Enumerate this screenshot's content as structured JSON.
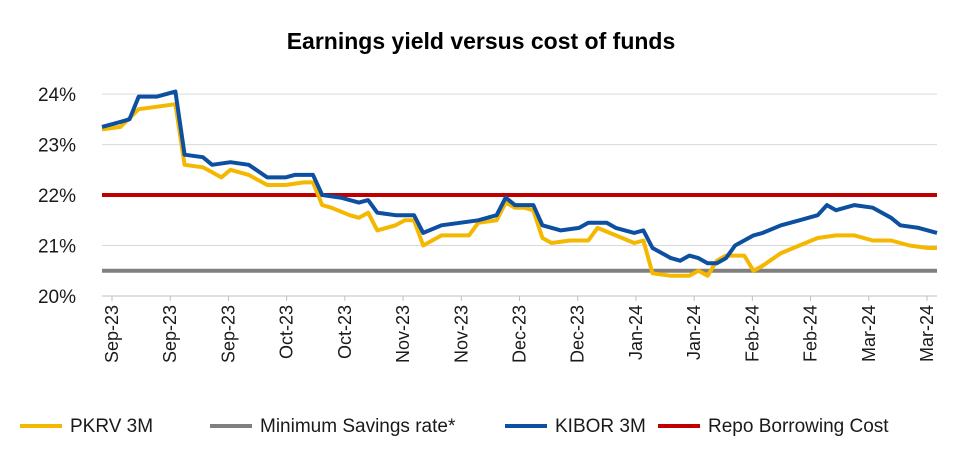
{
  "chart_data": {
    "type": "line",
    "title": "Earnings yield versus cost of funds",
    "xlabel": "",
    "ylabel": "",
    "ylim": [
      20,
      24.2
    ],
    "yticks": [
      "24%",
      "23%",
      "22%",
      "21%",
      "20%"
    ],
    "ytick_values": [
      24,
      23,
      22,
      21,
      20
    ],
    "grid": "horizontal",
    "legend_position": "bottom",
    "xticks": [
      "Sep-23",
      "Sep-23",
      "Sep-23",
      "Oct-23",
      "Oct-23",
      "Nov-23",
      "Nov-23",
      "Dec-23",
      "Dec-23",
      "Jan-24",
      "Jan-24",
      "Feb-24",
      "Feb-24",
      "Mar-24",
      "Mar-24"
    ],
    "series": [
      {
        "name": "PKRV 3M",
        "color": "#f5b800",
        "points": [
          [
            0,
            23.3
          ],
          [
            2,
            23.35
          ],
          [
            4,
            23.7
          ],
          [
            6,
            23.75
          ],
          [
            8,
            23.8
          ],
          [
            9,
            22.6
          ],
          [
            11,
            22.55
          ],
          [
            12,
            22.45
          ],
          [
            13,
            22.35
          ],
          [
            14,
            22.5
          ],
          [
            16,
            22.4
          ],
          [
            18,
            22.2
          ],
          [
            20,
            22.2
          ],
          [
            22,
            22.25
          ],
          [
            23,
            22.25
          ],
          [
            24,
            21.8
          ],
          [
            25,
            21.75
          ],
          [
            27,
            21.6
          ],
          [
            28,
            21.55
          ],
          [
            29,
            21.65
          ],
          [
            30,
            21.3
          ],
          [
            32,
            21.4
          ],
          [
            33,
            21.5
          ],
          [
            34,
            21.5
          ],
          [
            35,
            21.0
          ],
          [
            37,
            21.2
          ],
          [
            39,
            21.2
          ],
          [
            40,
            21.2
          ],
          [
            41,
            21.45
          ],
          [
            43,
            21.5
          ],
          [
            44,
            21.85
          ],
          [
            45,
            21.75
          ],
          [
            46,
            21.75
          ],
          [
            47,
            21.7
          ],
          [
            48,
            21.15
          ],
          [
            49,
            21.05
          ],
          [
            51,
            21.1
          ],
          [
            53,
            21.1
          ],
          [
            54,
            21.35
          ],
          [
            56,
            21.2
          ],
          [
            58,
            21.05
          ],
          [
            59,
            21.1
          ],
          [
            60,
            20.45
          ],
          [
            62,
            20.4
          ],
          [
            64,
            20.4
          ],
          [
            65,
            20.5
          ],
          [
            66,
            20.4
          ],
          [
            67,
            20.7
          ],
          [
            68,
            20.8
          ],
          [
            70,
            20.8
          ],
          [
            71,
            20.5
          ],
          [
            72,
            20.6
          ],
          [
            74,
            20.85
          ],
          [
            76,
            21.0
          ],
          [
            78,
            21.15
          ],
          [
            80,
            21.2
          ],
          [
            82,
            21.2
          ],
          [
            84,
            21.1
          ],
          [
            86,
            21.1
          ],
          [
            88,
            21.0
          ],
          [
            90,
            20.95
          ],
          [
            91,
            20.95
          ]
        ]
      },
      {
        "name": "Minimum Savings rate*",
        "color": "#808080",
        "points": [
          [
            0,
            20.5
          ],
          [
            91,
            20.5
          ]
        ]
      },
      {
        "name": "KIBOR 3M",
        "color": "#0d4fa0",
        "points": [
          [
            0,
            23.35
          ],
          [
            2,
            23.45
          ],
          [
            3,
            23.5
          ],
          [
            4,
            23.95
          ],
          [
            6,
            23.95
          ],
          [
            8,
            24.05
          ],
          [
            9,
            22.8
          ],
          [
            11,
            22.75
          ],
          [
            12,
            22.6
          ],
          [
            14,
            22.65
          ],
          [
            16,
            22.6
          ],
          [
            18,
            22.35
          ],
          [
            20,
            22.35
          ],
          [
            21,
            22.4
          ],
          [
            23,
            22.4
          ],
          [
            24,
            22.0
          ],
          [
            26,
            21.95
          ],
          [
            28,
            21.85
          ],
          [
            29,
            21.9
          ],
          [
            30,
            21.65
          ],
          [
            32,
            21.6
          ],
          [
            34,
            21.6
          ],
          [
            35,
            21.25
          ],
          [
            37,
            21.4
          ],
          [
            39,
            21.45
          ],
          [
            41,
            21.5
          ],
          [
            43,
            21.6
          ],
          [
            44,
            21.95
          ],
          [
            45,
            21.8
          ],
          [
            47,
            21.8
          ],
          [
            48,
            21.4
          ],
          [
            50,
            21.3
          ],
          [
            52,
            21.35
          ],
          [
            53,
            21.45
          ],
          [
            55,
            21.45
          ],
          [
            56,
            21.35
          ],
          [
            58,
            21.25
          ],
          [
            59,
            21.3
          ],
          [
            60,
            20.95
          ],
          [
            62,
            20.75
          ],
          [
            63,
            20.7
          ],
          [
            64,
            20.8
          ],
          [
            65,
            20.75
          ],
          [
            66,
            20.65
          ],
          [
            67,
            20.65
          ],
          [
            68,
            20.75
          ],
          [
            69,
            21.0
          ],
          [
            71,
            21.2
          ],
          [
            72,
            21.25
          ],
          [
            74,
            21.4
          ],
          [
            76,
            21.5
          ],
          [
            78,
            21.6
          ],
          [
            79,
            21.8
          ],
          [
            80,
            21.7
          ],
          [
            82,
            21.8
          ],
          [
            84,
            21.75
          ],
          [
            86,
            21.55
          ],
          [
            87,
            21.4
          ],
          [
            89,
            21.35
          ],
          [
            91,
            21.25
          ]
        ]
      },
      {
        "name": "Repo Borrowing Cost",
        "color": "#c00000",
        "points": [
          [
            0,
            22.0
          ],
          [
            91,
            22.0
          ]
        ]
      }
    ],
    "x_domain": [
      0,
      91
    ]
  }
}
